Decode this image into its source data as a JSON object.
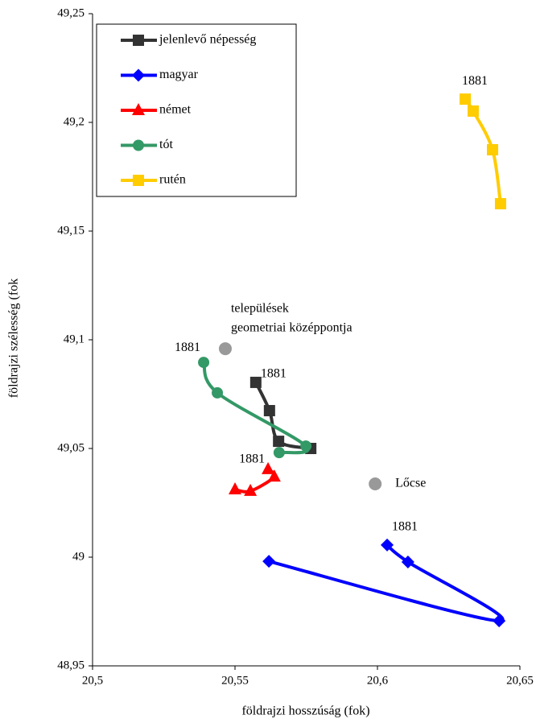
{
  "chart_data": {
    "type": "line",
    "xlabel": "földrajzi hosszúság (fok)",
    "ylabel": "földrajzi szélesség (fok",
    "xlim": [
      20.5,
      20.65
    ],
    "ylim": [
      48.95,
      49.25
    ],
    "xticks": [
      {
        "value": 20.5,
        "label": "20,5"
      },
      {
        "value": 20.55,
        "label": "20,55"
      },
      {
        "value": 20.6,
        "label": "20,6"
      },
      {
        "value": 20.65,
        "label": "20,65"
      }
    ],
    "yticks": [
      {
        "value": 48.95,
        "label": "48,95"
      },
      {
        "value": 49,
        "label": "49"
      },
      {
        "value": 49.05,
        "label": "49,05"
      },
      {
        "value": 49.1,
        "label": "49,1"
      },
      {
        "value": 49.15,
        "label": "49,15"
      },
      {
        "value": 49.2,
        "label": "49,2"
      },
      {
        "value": 49.25,
        "label": "49,25"
      }
    ],
    "legend": "upper left",
    "series": [
      {
        "name": "jelenlevő népesség",
        "color": "#333333",
        "marker": "square",
        "start_label": "1881",
        "x": [
          20.5573,
          20.5621,
          20.5653,
          20.5766
        ],
        "values": [
          49.0804,
          49.0674,
          49.0533,
          49.05
        ]
      },
      {
        "name": "magyar",
        "color": "#0000ff",
        "marker": "diamond",
        "start_label": "1881",
        "x": [
          20.6034,
          20.6107,
          20.6427,
          20.5619
        ],
        "values": [
          49.0056,
          48.9978,
          48.9707,
          48.9981
        ]
      },
      {
        "name": "német",
        "color": "#ff0000",
        "marker": "triangle",
        "start_label": "1881",
        "x": [
          20.5616,
          20.5638,
          20.5554,
          20.55
        ],
        "values": [
          49.0404,
          49.037,
          49.0304,
          49.0311
        ]
      },
      {
        "name": "tót",
        "color": "#339966",
        "marker": "circle",
        "start_label": "1881",
        "x": [
          20.539,
          20.5438,
          20.5749,
          20.5655
        ],
        "values": [
          49.0896,
          49.0756,
          49.0511,
          49.0481
        ]
      },
      {
        "name": "rutén",
        "color": "#ffcc00",
        "marker": "square",
        "start_label": "1881",
        "x": [
          20.6308,
          20.6336,
          20.6404,
          20.6432
        ],
        "values": [
          49.2107,
          49.2052,
          49.1874,
          49.1626
        ]
      }
    ],
    "points": [
      {
        "label": [
          "települések",
          "geometriai középpontja"
        ],
        "x": 20.5466,
        "y": 49.0959,
        "color": "#999999"
      },
      {
        "label": [
          "Lőcse"
        ],
        "x": 20.5992,
        "y": 49.0337,
        "color": "#999999"
      }
    ]
  }
}
